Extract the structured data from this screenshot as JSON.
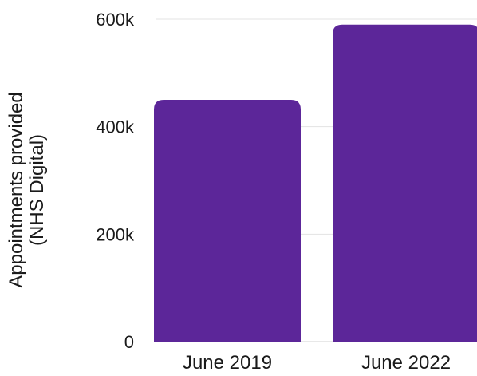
{
  "chart_data": {
    "type": "bar",
    "categories": [
      "June 2019",
      "June 2022"
    ],
    "values": [
      450000,
      590000
    ],
    "title": "",
    "xlabel": "",
    "ylabel_lines": [
      "Appointments provided",
      "(NHS Digital)"
    ],
    "ylim": [
      0,
      600000
    ],
    "yticks": [
      {
        "value": 0,
        "label": "0"
      },
      {
        "value": 200000,
        "label": "200k"
      },
      {
        "value": 400000,
        "label": "400k"
      },
      {
        "value": 600000,
        "label": "600k"
      }
    ],
    "grid": true,
    "legend": "none",
    "bar_color": "#5c2699",
    "grid_color": "#e3e3e3"
  }
}
